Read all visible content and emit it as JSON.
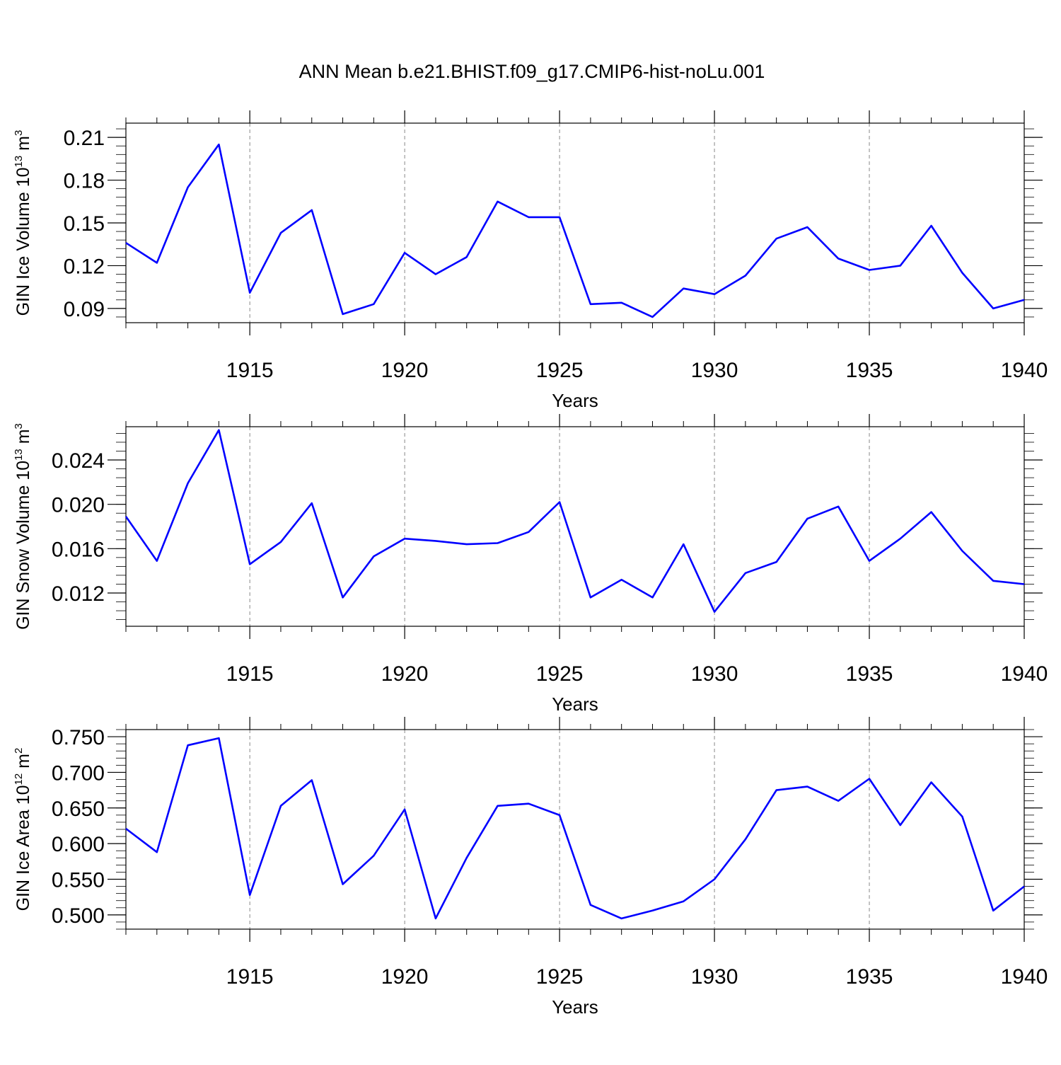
{
  "chart_data": [
    {
      "type": "line",
      "title": "ANN Mean b.e21.BHIST.f09_g17.CMIP6-hist-noLu.001",
      "xlabel": "Years",
      "ylabel": {
        "text": "GIN Ice Volume 10",
        "exp": "13",
        "unit": "m",
        "unit_exp": "3"
      },
      "xlim": [
        1911,
        1940
      ],
      "ylim": [
        0.08,
        0.22
      ],
      "xticks": [
        1915,
        1920,
        1925,
        1930,
        1935,
        1940
      ],
      "yticks": [
        0.09,
        0.12,
        0.15,
        0.18,
        0.21
      ],
      "yticks_text": [
        "0.09",
        "0.12",
        "0.15",
        "0.18",
        "0.21"
      ],
      "grid": "vertical dashed at major x ticks",
      "line_color": "#0000ff",
      "x": [
        1911,
        1912,
        1913,
        1914,
        1915,
        1916,
        1917,
        1918,
        1919,
        1920,
        1921,
        1922,
        1923,
        1924,
        1925,
        1926,
        1927,
        1928,
        1929,
        1930,
        1931,
        1932,
        1933,
        1934,
        1935,
        1936,
        1937,
        1938,
        1939,
        1940
      ],
      "values": [
        0.136,
        0.122,
        0.175,
        0.205,
        0.101,
        0.143,
        0.159,
        0.086,
        0.093,
        0.129,
        0.114,
        0.126,
        0.165,
        0.154,
        0.154,
        0.093,
        0.094,
        0.084,
        0.104,
        0.1,
        0.113,
        0.139,
        0.147,
        0.125,
        0.117,
        0.12,
        0.148,
        0.115,
        0.09,
        0.096
      ]
    },
    {
      "type": "line",
      "xlabel": "Years",
      "ylabel": {
        "text": "GIN Snow Volume 10",
        "exp": "13",
        "unit": "m",
        "unit_exp": "3"
      },
      "xlim": [
        1911,
        1940
      ],
      "ylim": [
        0.009,
        0.027
      ],
      "xticks": [
        1915,
        1920,
        1925,
        1930,
        1935,
        1940
      ],
      "yticks": [
        0.012,
        0.016,
        0.02,
        0.024
      ],
      "yticks_text": [
        "0.012",
        "0.016",
        "0.020",
        "0.024"
      ],
      "grid": "vertical dashed at major x ticks",
      "line_color": "#0000ff",
      "x": [
        1911,
        1912,
        1913,
        1914,
        1915,
        1916,
        1917,
        1918,
        1919,
        1920,
        1921,
        1922,
        1923,
        1924,
        1925,
        1926,
        1927,
        1928,
        1929,
        1930,
        1931,
        1932,
        1933,
        1934,
        1935,
        1936,
        1937,
        1938,
        1939,
        1940
      ],
      "values": [
        0.0189,
        0.0149,
        0.0219,
        0.0267,
        0.0146,
        0.0166,
        0.0201,
        0.0116,
        0.0153,
        0.0169,
        0.0167,
        0.0164,
        0.0165,
        0.0175,
        0.0202,
        0.0116,
        0.0132,
        0.0116,
        0.0164,
        0.0103,
        0.0138,
        0.0148,
        0.0187,
        0.0198,
        0.0149,
        0.0169,
        0.0193,
        0.0158,
        0.0131,
        0.0128
      ]
    },
    {
      "type": "line",
      "xlabel": "Years",
      "ylabel": {
        "text": "GIN Ice Area 10",
        "exp": "12",
        "unit": "m",
        "unit_exp": "2"
      },
      "xlim": [
        1911,
        1940
      ],
      "ylim": [
        0.48,
        0.76
      ],
      "xticks": [
        1915,
        1920,
        1925,
        1930,
        1935,
        1940
      ],
      "yticks": [
        0.5,
        0.55,
        0.6,
        0.65,
        0.7,
        0.75
      ],
      "yticks_text": [
        "0.500",
        "0.550",
        "0.600",
        "0.650",
        "0.700",
        "0.750"
      ],
      "grid": "vertical dashed at major x ticks",
      "line_color": "#0000ff",
      "x": [
        1911,
        1912,
        1913,
        1914,
        1915,
        1916,
        1917,
        1918,
        1919,
        1920,
        1921,
        1922,
        1923,
        1924,
        1925,
        1926,
        1927,
        1928,
        1929,
        1930,
        1931,
        1932,
        1933,
        1934,
        1935,
        1936,
        1937,
        1938,
        1939,
        1940
      ],
      "values": [
        0.621,
        0.588,
        0.738,
        0.748,
        0.528,
        0.653,
        0.689,
        0.543,
        0.583,
        0.648,
        0.495,
        0.58,
        0.653,
        0.656,
        0.64,
        0.514,
        0.495,
        0.506,
        0.519,
        0.55,
        0.606,
        0.675,
        0.68,
        0.66,
        0.691,
        0.626,
        0.686,
        0.638,
        0.506,
        0.54
      ]
    }
  ]
}
